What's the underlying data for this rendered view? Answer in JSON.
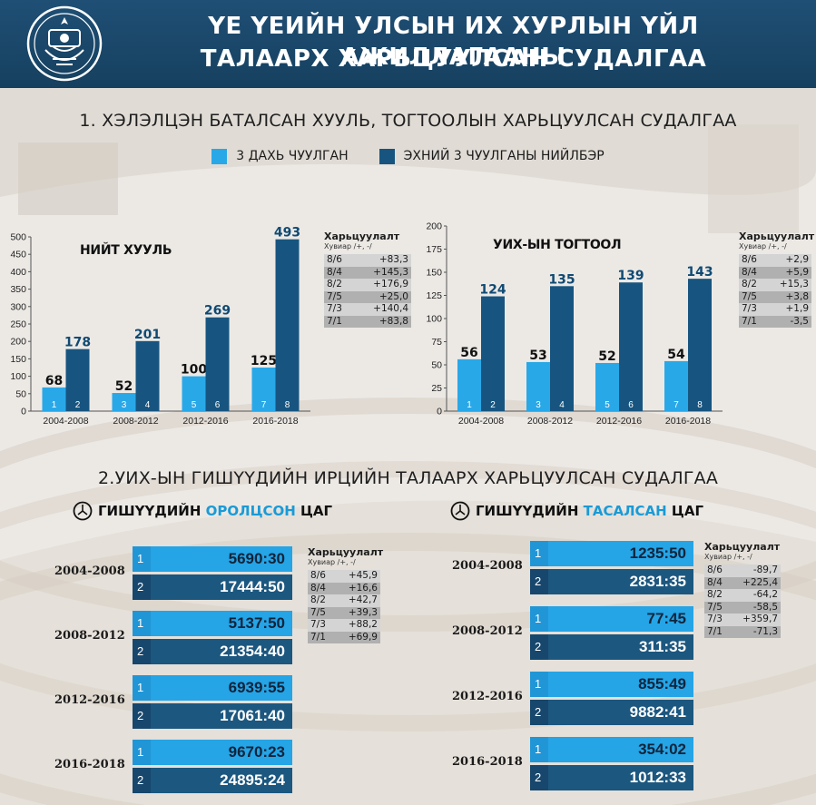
{
  "header": {
    "title_line1": "ҮЕ ҮЕИЙН УЛСЫН ИХ ХУРЛЫН ҮЙЛ АЖИЛЛАГААНЫ",
    "title_line2": "ТАЛААРХ ХАРЬЦУУЛСАН СУДАЛГАА"
  },
  "colors": {
    "header_bg": "#1f4f75",
    "light_blue": "#29a8e8",
    "dark_blue": "#175580",
    "highlight_blue": "#1a9ad6"
  },
  "section1": {
    "title": "1. ХЭЛЭЛЦЭН БАТАЛСАН ХУУЛЬ, ТОГТООЛЫН ХАРЬЦУУЛСАН СУДАЛГАА",
    "legend": [
      {
        "label": "3 ДАХЬ ЧУУЛГАН",
        "color": "#29a8e8"
      },
      {
        "label": "ЭХНИЙ 3 ЧУУЛГАНЫ НИЙЛБЭР",
        "color": "#175580"
      }
    ]
  },
  "chart_data": [
    {
      "type": "bar",
      "title": "НИЙТ ХУУЛЬ",
      "categories": [
        "2004-2008",
        "2008-2012",
        "2012-2016",
        "2016-2018"
      ],
      "ylim": [
        0,
        500
      ],
      "yticks": [
        0,
        50,
        100,
        150,
        200,
        250,
        300,
        350,
        400,
        450,
        500
      ],
      "bar_numbers": [
        [
          "1",
          "2"
        ],
        [
          "3",
          "4"
        ],
        [
          "5",
          "6"
        ],
        [
          "7",
          "8"
        ]
      ],
      "series": [
        {
          "name": "3 ДАХЬ ЧУУЛГАН",
          "values": [
            68,
            52,
            100,
            125
          ]
        },
        {
          "name": "ЭХНИЙ 3 ЧУУЛГАНЫ НИЙЛБЭР",
          "values": [
            178,
            201,
            269,
            493
          ]
        }
      ]
    },
    {
      "type": "bar",
      "title": "УИХ-ЫН ТОГТООЛ",
      "categories": [
        "2004-2008",
        "2008-2012",
        "2012-2016",
        "2016-2018"
      ],
      "ylim": [
        0,
        200
      ],
      "yticks": [
        0,
        25,
        50,
        75,
        100,
        125,
        150,
        175,
        200
      ],
      "bar_numbers": [
        [
          "1",
          "2"
        ],
        [
          "3",
          "4"
        ],
        [
          "5",
          "6"
        ],
        [
          "7",
          "8"
        ]
      ],
      "series": [
        {
          "name": "3 ДАХЬ ЧУУЛГАН",
          "values": [
            56,
            53,
            52,
            54
          ]
        },
        {
          "name": "ЭХНИЙ 3 ЧУУЛГАНЫ НИЙЛБЭР",
          "values": [
            124,
            135,
            139,
            143
          ]
        }
      ]
    }
  ],
  "comparisons": {
    "laws": {
      "title": "Харьцуулалт",
      "sub": "Хувиар /+, -/",
      "rows": [
        {
          "k": "8/6",
          "v": "+83,3"
        },
        {
          "k": "8/4",
          "v": "+145,3"
        },
        {
          "k": "8/2",
          "v": "+176,9"
        },
        {
          "k": "7/5",
          "v": "+25,0"
        },
        {
          "k": "7/3",
          "v": "+140,4"
        },
        {
          "k": "7/1",
          "v": "+83,8"
        }
      ]
    },
    "resolutions": {
      "title": "Харьцуулалт",
      "sub": "Хувиар /+, -/",
      "rows": [
        {
          "k": "8/6",
          "v": "+2,9"
        },
        {
          "k": "8/4",
          "v": "+5,9"
        },
        {
          "k": "8/2",
          "v": "+15,3"
        },
        {
          "k": "7/5",
          "v": "+3,8"
        },
        {
          "k": "7/3",
          "v": "+1,9"
        },
        {
          "k": "7/1",
          "v": "-3,5"
        }
      ]
    },
    "attended": {
      "title": "Харьцуулалт",
      "sub": "Хувиар /+, -/",
      "rows": [
        {
          "k": "8/6",
          "v": "+45,9"
        },
        {
          "k": "8/4",
          "v": "+16,6"
        },
        {
          "k": "8/2",
          "v": "+42,7"
        },
        {
          "k": "7/5",
          "v": "+39,3"
        },
        {
          "k": "7/3",
          "v": "+88,2"
        },
        {
          "k": "7/1",
          "v": "+69,9"
        }
      ]
    },
    "missed": {
      "title": "Харьцуулалт",
      "sub": "Хувиар /+, -/",
      "rows": [
        {
          "k": "8/6",
          "v": "-89,7"
        },
        {
          "k": "8/4",
          "v": "+225,4"
        },
        {
          "k": "8/2",
          "v": "-64,2"
        },
        {
          "k": "7/5",
          "v": "-58,5"
        },
        {
          "k": "7/3",
          "v": "+359,7"
        },
        {
          "k": "7/1",
          "v": "-71,3"
        }
      ]
    }
  },
  "section2": {
    "title": "2.УИХ-ЫН ГИШҮҮДИЙН ИРЦИЙН ТАЛААРХ ХАРЬЦУУЛСАН СУДАЛГАА",
    "attended_title_pre": "ГИШҮҮДИЙН ",
    "attended_title_hl": "ОРОЛЦСОН",
    "attended_title_post": " ЦАГ",
    "missed_title_pre": "ГИШҮҮДИЙН ",
    "missed_title_hl": "ТАСАЛСАН",
    "missed_title_post": " ЦАГ",
    "attended": [
      {
        "period": "2004-2008",
        "r1": "5690:30",
        "r2": "17444:50"
      },
      {
        "period": "2008-2012",
        "r1": "5137:50",
        "r2": "21354:40"
      },
      {
        "period": "2012-2016",
        "r1": "6939:55",
        "r2": "17061:40"
      },
      {
        "period": "2016-2018",
        "r1": "9670:23",
        "r2": "24895:24"
      }
    ],
    "missed": [
      {
        "period": "2004-2008",
        "r1": "1235:50",
        "r2": "2831:35"
      },
      {
        "period": "2008-2012",
        "r1": "77:45",
        "r2": "311:35"
      },
      {
        "period": "2012-2016",
        "r1": "855:49",
        "r2": "9882:41"
      },
      {
        "period": "2016-2018",
        "r1": "354:02",
        "r2": "1012:33"
      }
    ],
    "row_numbers": [
      "1",
      "2"
    ]
  }
}
